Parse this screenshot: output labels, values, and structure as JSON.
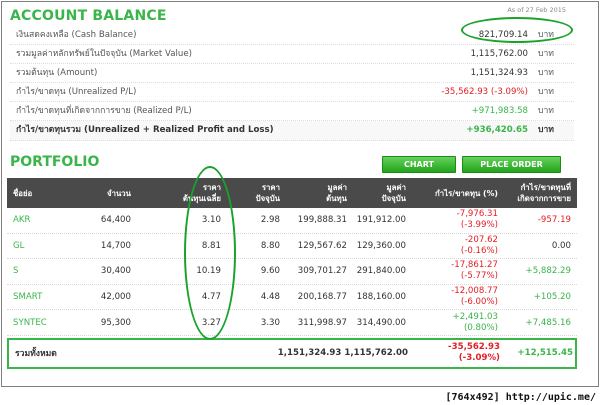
{
  "account": {
    "title": "ACCOUNT BALANCE",
    "as_of": "As of 27 Feb 2015",
    "rows": [
      {
        "label": "เงินสดคงเหลือ (Cash Balance)",
        "value": "821,709.14",
        "currency": "บาท"
      },
      {
        "label": "รวมมูลค่าหลักทรัพย์ในปัจจุบัน (Market Value)",
        "value": "1,115,762.00",
        "currency": "บาท"
      },
      {
        "label": "รวมต้นทุน (Amount)",
        "value": "1,151,324.93",
        "currency": "บาท"
      },
      {
        "label": "กำไร/ขาดทุน (Unrealized P/L)",
        "value": "-35,562.93 (-3.09%)",
        "currency": "บาท"
      },
      {
        "label": "กำไร/ขาดทุนที่เกิดจากการขาย (Realized P/L)",
        "value": "+971,983.58",
        "currency": "บาท"
      },
      {
        "label": "กำไร/ขาดทุนรวม (Unrealized + Realized Profit and Loss)",
        "value": "+936,420.65",
        "currency": "บาท"
      }
    ]
  },
  "portfolio": {
    "title": "PORTFOLIO",
    "chart_button": "CHART",
    "order_button": "PLACE ORDER",
    "headers": {
      "name": "ชื่อย่อ",
      "volume": "จำนวน",
      "avg_cost_1": "ราคา",
      "avg_cost_2": "ต้นทุนเฉลี่ย",
      "last_1": "ราคา",
      "last_2": "ปัจจุบัน",
      "cost_1": "มูลค่า",
      "cost_2": "ต้นทุน",
      "market_1": "มูลค่า",
      "market_2": "ปัจจุบัน",
      "unrealized": "กำไร/ขาดทุน (%)",
      "realized_1": "กำไร/ขาดทุนที่",
      "realized_2": "เกิดจากการขาย"
    },
    "rows": [
      {
        "symbol": "AKR",
        "volume": "64,400",
        "avg_cost": "3.10",
        "last": "2.98",
        "cost": "199,888.31",
        "market": "191,912.00",
        "upl": "-7,976.31",
        "upl_pct": "(-3.99%)",
        "rpl": "-957.19"
      },
      {
        "symbol": "GL",
        "volume": "14,700",
        "avg_cost": "8.81",
        "last": "8.80",
        "cost": "129,567.62",
        "market": "129,360.00",
        "upl": "-207.62",
        "upl_pct": "(-0.16%)",
        "rpl": "0.00"
      },
      {
        "symbol": "S",
        "volume": "30,400",
        "avg_cost": "10.19",
        "last": "9.60",
        "cost": "309,701.27",
        "market": "291,840.00",
        "upl": "-17,861.27",
        "upl_pct": "(-5.77%)",
        "rpl": "+5,882.29"
      },
      {
        "symbol": "SMART",
        "volume": "42,000",
        "avg_cost": "4.77",
        "last": "4.48",
        "cost": "200,168.77",
        "market": "188,160.00",
        "upl": "-12,008.77",
        "upl_pct": "(-6.00%)",
        "rpl": "+105.20"
      },
      {
        "symbol": "SYNTEC",
        "volume": "95,300",
        "avg_cost": "3.27",
        "last": "3.30",
        "cost": "311,998.97",
        "market": "314,490.00",
        "upl": "+2,491.03",
        "upl_pct": "(0.80%)",
        "rpl": "+7,485.16"
      }
    ],
    "total": {
      "label": "รวมทั้งหมด",
      "cost_and_market": "1,151,324.93 1,115,762.00",
      "upl": "-35,562.93",
      "upl_pct": "(-3.09%)",
      "rpl": "+12,515.45"
    }
  },
  "watermark": "[764x492] http://upic.me/",
  "colors": {
    "accent_green": "#39b54a",
    "loss_red": "#e31e24",
    "header_bg": "#4a4a4a",
    "annotation_green": "#1aa32c"
  }
}
